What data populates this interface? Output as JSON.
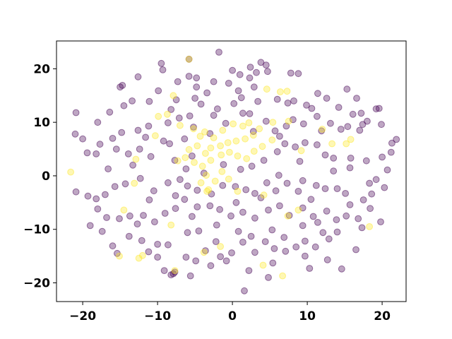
{
  "chart_data": {
    "type": "scatter",
    "title": "",
    "xlabel": "",
    "ylabel": "",
    "xlim": [
      -23.5,
      23.2
    ],
    "ylim": [
      -23.5,
      25.2
    ],
    "xticks": [
      -20,
      -10,
      0,
      10,
      20
    ],
    "yticks": [
      -20,
      -10,
      0,
      10,
      20
    ],
    "grid": false,
    "colors": {
      "class_0": "#440154",
      "class_1": "#fde725"
    },
    "point_alpha": 0.35,
    "series": [
      {
        "class": 0,
        "points": [
          [
            -1.8,
            23.1
          ],
          [
            -5.8,
            21.8
          ],
          [
            -9.5,
            21.0
          ],
          [
            -9.3,
            19.8
          ],
          [
            -5.8,
            18.6
          ],
          [
            0,
            19.7
          ],
          [
            1.0,
            18.9
          ],
          [
            2.3,
            18.3
          ],
          [
            3.2,
            19.3
          ],
          [
            3.8,
            21.2
          ],
          [
            2.4,
            20.3
          ],
          [
            4.5,
            20.7
          ],
          [
            4.7,
            19.5
          ],
          [
            7.8,
            19.2
          ],
          [
            8.8,
            19.1
          ],
          [
            -4.8,
            18.3
          ],
          [
            -12.6,
            18.5
          ],
          [
            -14.7,
            16.9
          ],
          [
            -15.0,
            16.6
          ],
          [
            -7.3,
            17.6
          ],
          [
            -2.5,
            17.6
          ],
          [
            -0.5,
            17.3
          ],
          [
            2.9,
            16.6
          ],
          [
            0.8,
            15.9
          ],
          [
            -3.4,
            15.5
          ],
          [
            -4.8,
            16.6
          ],
          [
            -9.9,
            15.9
          ],
          [
            -11.1,
            13.9
          ],
          [
            -13.4,
            14.0
          ],
          [
            -7.5,
            14.2
          ],
          [
            -5.0,
            14.5
          ],
          [
            -4.2,
            13.4
          ],
          [
            -2.0,
            12.5
          ],
          [
            0.2,
            13.5
          ],
          [
            1.2,
            14.6
          ],
          [
            3.4,
            13.9
          ],
          [
            6.0,
            14.3
          ],
          [
            7.4,
            13.6
          ],
          [
            8.2,
            14.0
          ],
          [
            9.9,
            13.2
          ],
          [
            10.6,
            12.6
          ],
          [
            11.4,
            15.4
          ],
          [
            12.6,
            14.5
          ],
          [
            14.2,
            12.8
          ],
          [
            15.3,
            16.2
          ],
          [
            16.6,
            14.5
          ],
          [
            17.2,
            11.7
          ],
          [
            19.2,
            12.5
          ],
          [
            19.6,
            12.6
          ],
          [
            18.0,
            10.2
          ],
          [
            17.4,
            9.6
          ],
          [
            17.0,
            8.5
          ],
          [
            15.4,
            9.2
          ],
          [
            14.5,
            8.7
          ],
          [
            13.1,
            9.8
          ],
          [
            11.9,
            8.4
          ],
          [
            9.5,
            9.7
          ],
          [
            8.1,
            10.5
          ],
          [
            7.2,
            9.3
          ],
          [
            5.7,
            8.4
          ],
          [
            4.5,
            10.2
          ],
          [
            2.3,
            11.6
          ],
          [
            1.4,
            11.7
          ],
          [
            -0.9,
            9.8
          ],
          [
            -2.5,
            11.3
          ],
          [
            -5.7,
            11.2
          ],
          [
            -7.1,
            10.8
          ],
          [
            -8.6,
            9.9
          ],
          [
            -11.2,
            9.3
          ],
          [
            -12.6,
            8.5
          ],
          [
            -14.8,
            8.1
          ],
          [
            -16.0,
            7.0
          ],
          [
            -17.7,
            5.9
          ],
          [
            -19.4,
            4.3
          ],
          [
            -20.0,
            6.9
          ],
          [
            -18.0,
            10.0
          ],
          [
            -16.4,
            11.9
          ],
          [
            -20.9,
            11.8
          ],
          [
            -21.0,
            7.8
          ],
          [
            -18.2,
            4.1
          ],
          [
            -15.5,
            5.0
          ],
          [
            -13.9,
            4.1
          ],
          [
            -12.4,
            5.0
          ],
          [
            -11.6,
            7.2
          ],
          [
            -9.2,
            6.5
          ],
          [
            -8.4,
            6.0
          ],
          [
            -7.7,
            2.9
          ],
          [
            -6.2,
            1.3
          ],
          [
            -5.4,
            3.7
          ],
          [
            -3.8,
            0.5
          ],
          [
            -1.2,
            2.1
          ],
          [
            1.1,
            1.2
          ],
          [
            2.6,
            1.8
          ],
          [
            4.2,
            2.9
          ],
          [
            6.0,
            4.5
          ],
          [
            7.0,
            6.0
          ],
          [
            8.4,
            5.4
          ],
          [
            9.7,
            6.2
          ],
          [
            11.3,
            5.8
          ],
          [
            12.4,
            3.9
          ],
          [
            13.5,
            3.3
          ],
          [
            15.8,
            3.3
          ],
          [
            17.9,
            2.8
          ],
          [
            20.0,
            3.5
          ],
          [
            21.2,
            4.4
          ],
          [
            21.3,
            6.1
          ],
          [
            21.9,
            6.8
          ],
          [
            20.7,
            1.1
          ],
          [
            19.2,
            -0.7
          ],
          [
            18.3,
            -1.4
          ],
          [
            20.3,
            -2.2
          ],
          [
            18.6,
            -3.4
          ],
          [
            17.5,
            -4.5
          ],
          [
            15.7,
            -5.4
          ],
          [
            15.1,
            -3.3
          ],
          [
            14.0,
            -2.4
          ],
          [
            12.4,
            -2.4
          ],
          [
            11.2,
            -1.8
          ],
          [
            9.4,
            -0.9
          ],
          [
            8.8,
            -2.9
          ],
          [
            7.3,
            -1.4
          ],
          [
            5.8,
            -2.8
          ],
          [
            4.6,
            -1.3
          ],
          [
            3.0,
            -3.3
          ],
          [
            1.8,
            -2.6
          ],
          [
            0.4,
            -2.0
          ],
          [
            -1.3,
            -1.8
          ],
          [
            -2.8,
            -3.4
          ],
          [
            -4.7,
            -2.7
          ],
          [
            -6.0,
            -1.9
          ],
          [
            -7.0,
            -0.7
          ],
          [
            -8.6,
            -1.3
          ],
          [
            -10.5,
            -2.8
          ],
          [
            -12.3,
            -0.5
          ],
          [
            -14.3,
            -1.5
          ],
          [
            -15.7,
            -2.0
          ],
          [
            -17.0,
            -3.5
          ],
          [
            -18.2,
            -4.3
          ],
          [
            -19.3,
            -3.8
          ],
          [
            -20.9,
            -3.0
          ],
          [
            -18.0,
            -6.2
          ],
          [
            -16.8,
            -7.8
          ],
          [
            -15.1,
            -8.0
          ],
          [
            -13.7,
            -7.5
          ],
          [
            -11.9,
            -7.4
          ],
          [
            -10.4,
            -8.6
          ],
          [
            -9.0,
            -7.0
          ],
          [
            -7.6,
            -6.1
          ],
          [
            -6.4,
            -4.4
          ],
          [
            -4.7,
            -5.8
          ],
          [
            -3.0,
            -5.6
          ],
          [
            -1.7,
            -6.3
          ],
          [
            -0.2,
            -7.5
          ],
          [
            1.4,
            -6.8
          ],
          [
            3.0,
            -7.9
          ],
          [
            4.8,
            -6.4
          ],
          [
            6.3,
            -5.6
          ],
          [
            7.6,
            -7.4
          ],
          [
            9.4,
            -6.0
          ],
          [
            10.8,
            -7.6
          ],
          [
            12.6,
            -6.6
          ],
          [
            13.9,
            -8.2
          ],
          [
            15.2,
            -7.5
          ],
          [
            16.8,
            -8.0
          ],
          [
            19.8,
            -8.6
          ],
          [
            17.3,
            -9.7
          ],
          [
            16.5,
            -13.8
          ],
          [
            14.0,
            -10.5
          ],
          [
            12.9,
            -11.8
          ],
          [
            11.1,
            -13.3
          ],
          [
            9.7,
            -12.2
          ],
          [
            8.5,
            -13.3
          ],
          [
            7.1,
            -14.1
          ],
          [
            5.6,
            -13.6
          ],
          [
            4.4,
            -12.3
          ],
          [
            3.0,
            -14.3
          ],
          [
            1.4,
            -12.4
          ],
          [
            -0.1,
            -14.4
          ],
          [
            -1.6,
            -15.1
          ],
          [
            -3.6,
            -14.0
          ],
          [
            -4.9,
            -15.9
          ],
          [
            -6.2,
            -15.2
          ],
          [
            -7.7,
            -18.0
          ],
          [
            -9.1,
            -17.7
          ],
          [
            -10.0,
            -15.2
          ],
          [
            -12.1,
            -12.1
          ],
          [
            -13.8,
            -11.3
          ],
          [
            -15.4,
            -14.5
          ],
          [
            -17.4,
            -10.4
          ],
          [
            -19.0,
            -9.3
          ],
          [
            -8.6,
            -12.9
          ],
          [
            -6.0,
            -10.6
          ],
          [
            -4.5,
            -10.3
          ],
          [
            -2.1,
            -9.2
          ],
          [
            0.8,
            -10.4
          ],
          [
            2.5,
            -11.3
          ],
          [
            5.3,
            -10.1
          ],
          [
            6.9,
            -11.5
          ],
          [
            9.4,
            -9.3
          ],
          [
            11.4,
            -8.7
          ],
          [
            12.1,
            -10.6
          ],
          [
            -0.8,
            -15.9
          ],
          [
            -2.9,
            -16.8
          ],
          [
            2.2,
            -17.7
          ],
          [
            5.4,
            -16.3
          ],
          [
            4.8,
            -19.0
          ],
          [
            1.6,
            -21.5
          ],
          [
            -5.6,
            -18.7
          ],
          [
            -8.2,
            -18.5
          ],
          [
            -7.9,
            -18.3
          ],
          [
            14.6,
            -17.4
          ],
          [
            10.3,
            -17.3
          ],
          [
            12.7,
            -15.7
          ],
          [
            -11.2,
            -14.2
          ],
          [
            -10.0,
            -12.8
          ],
          [
            -16.0,
            -13.1
          ],
          [
            0.5,
            -5.0
          ],
          [
            -3.0,
            7.9
          ],
          [
            2.8,
            8.3
          ],
          [
            6.3,
            7.4
          ],
          [
            -8.2,
            12.4
          ],
          [
            -5.2,
            9.1
          ],
          [
            -10.9,
            3.6
          ],
          [
            -13.3,
            2.0
          ],
          [
            -16.6,
            1.3
          ],
          [
            -7.6,
            -3.7
          ],
          [
            -11.1,
            -4.5
          ],
          [
            3.8,
            -4.1
          ],
          [
            6.2,
            0.1
          ],
          [
            10.5,
            -4.4
          ],
          [
            13.5,
            0.9
          ],
          [
            9.0,
            2.7
          ],
          [
            15.7,
            1.5
          ],
          [
            18.4,
            -6.1
          ],
          [
            -2.2,
            -12.3
          ],
          [
            -5.4,
            -7.6
          ],
          [
            9.7,
            -15.0
          ],
          [
            -12.7,
            -9.0
          ],
          [
            16.1,
            11.5
          ],
          [
            19.9,
            9.6
          ],
          [
            -14.5,
            13.1
          ],
          [
            11.3,
            11.1
          ],
          [
            -6.4,
            6.9
          ]
        ]
      },
      {
        "class": 1,
        "points": [
          [
            -21.6,
            0.7
          ],
          [
            -5.8,
            21.8
          ],
          [
            -7.9,
            15.0
          ],
          [
            -8.7,
            11.5
          ],
          [
            -7.0,
            9.4
          ],
          [
            -5.2,
            8.8
          ],
          [
            -3.7,
            8.2
          ],
          [
            -4.3,
            7.4
          ],
          [
            -2.5,
            7.1
          ],
          [
            -1.3,
            8.5
          ],
          [
            0.1,
            9.7
          ],
          [
            1.4,
            9.3
          ],
          [
            2.2,
            9.9
          ],
          [
            3.6,
            8.8
          ],
          [
            2.8,
            7.6
          ],
          [
            1.7,
            6.9
          ],
          [
            0.5,
            6.5
          ],
          [
            -0.6,
            6.2
          ],
          [
            -1.6,
            5.6
          ],
          [
            -2.9,
            5.2
          ],
          [
            -3.6,
            4.2
          ],
          [
            -4.7,
            5.6
          ],
          [
            -5.8,
            4.9
          ],
          [
            -6.3,
            3.4
          ],
          [
            -7.3,
            2.8
          ],
          [
            -5.1,
            2.5
          ],
          [
            -4.0,
            1.8
          ],
          [
            -2.9,
            2.9
          ],
          [
            -1.5,
            3.9
          ],
          [
            -0.4,
            4.4
          ],
          [
            0.7,
            3.7
          ],
          [
            1.9,
            3.2
          ],
          [
            2.9,
            4.6
          ],
          [
            4.0,
            5.5
          ],
          [
            5.3,
            6.7
          ],
          [
            5.4,
            10.0
          ],
          [
            4.6,
            16.2
          ],
          [
            6.4,
            15.7
          ],
          [
            7.3,
            15.8
          ],
          [
            7.5,
            10.2
          ],
          [
            -1.4,
            0.8
          ],
          [
            -3.5,
            0.1
          ],
          [
            -4.2,
            -1.3
          ],
          [
            -3.2,
            -2.6
          ],
          [
            -3.4,
            -2.9
          ],
          [
            -2.3,
            -1.0
          ],
          [
            -0.5,
            -0.6
          ],
          [
            0.7,
            -2.9
          ],
          [
            -12.5,
            -15.4
          ],
          [
            -12.0,
            -14.9
          ],
          [
            -15.1,
            -15.0
          ],
          [
            -14.5,
            -6.4
          ],
          [
            -13.1,
            -1.4
          ],
          [
            -7.7,
            -17.7
          ],
          [
            6.7,
            -18.7
          ],
          [
            4.1,
            -16.7
          ],
          [
            7.4,
            -7.5
          ],
          [
            8.8,
            -6.4
          ],
          [
            9.2,
            4.7
          ],
          [
            15.8,
            6.8
          ],
          [
            15.2,
            6.0
          ],
          [
            18.3,
            -9.5
          ],
          [
            -8.2,
            -9.2
          ],
          [
            -3.8,
            -14.3
          ],
          [
            -1.6,
            -13.2
          ],
          [
            -12.9,
            3.1
          ],
          [
            -10.3,
            7.5
          ],
          [
            4.2,
            -3.6
          ],
          [
            12.0,
            8.7
          ],
          [
            13.3,
            6.0
          ],
          [
            -9.9,
            11.1
          ]
        ]
      }
    ]
  }
}
